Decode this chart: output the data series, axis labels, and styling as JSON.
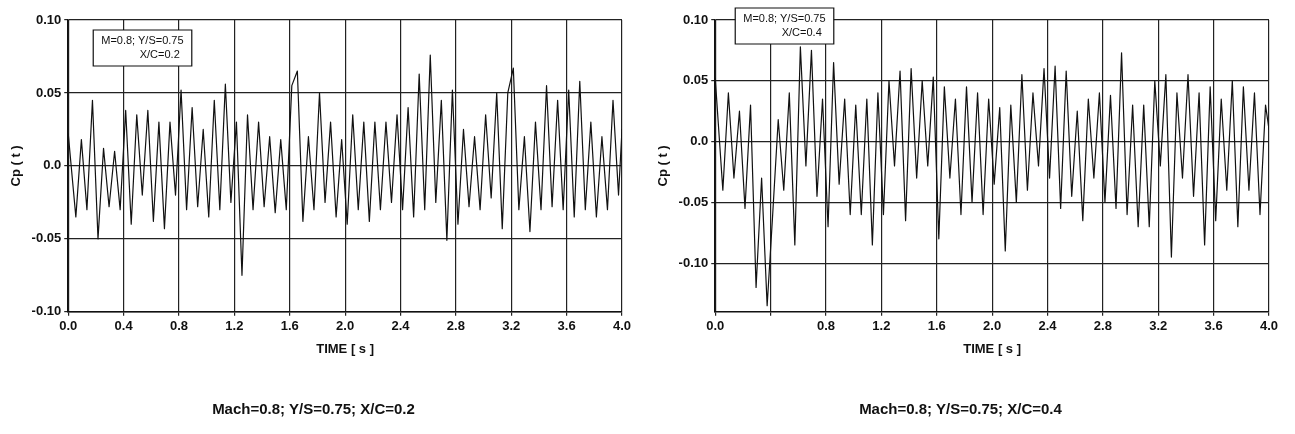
{
  "chart_data": [
    {
      "type": "line",
      "title": "Mach=0.8; Y/S=0.75; X/C=0.2",
      "xlabel": "TIME [ s ]",
      "ylabel": "Cp ( t )",
      "annotations": [
        "M=0.8; Y/S=0.75",
        "X/C=0.2"
      ],
      "series": [
        {
          "color": "#111111",
          "x": [
            0,
            0.055,
            0.095,
            0.135,
            0.175,
            0.215,
            0.255,
            0.295,
            0.335,
            0.375,
            0.415,
            0.455,
            0.495,
            0.535,
            0.575,
            0.615,
            0.655,
            0.695,
            0.735,
            0.775,
            0.815,
            0.855,
            0.895,
            0.935,
            0.975,
            1.015,
            1.055,
            1.095,
            1.135,
            1.175,
            1.215,
            1.255,
            1.295,
            1.335,
            1.375,
            1.415,
            1.455,
            1.495,
            1.535,
            1.575,
            1.615,
            1.655,
            1.695,
            1.735,
            1.775,
            1.815,
            1.855,
            1.895,
            1.935,
            1.975,
            2.015,
            2.055,
            2.095,
            2.135,
            2.175,
            2.215,
            2.255,
            2.295,
            2.335,
            2.375,
            2.415,
            2.455,
            2.495,
            2.535,
            2.575,
            2.615,
            2.655,
            2.695,
            2.735,
            2.775,
            2.815,
            2.855,
            2.895,
            2.935,
            2.975,
            3.015,
            3.055,
            3.095,
            3.135,
            3.175,
            3.215,
            3.255,
            3.295,
            3.335,
            3.375,
            3.415,
            3.455,
            3.495,
            3.535,
            3.575,
            3.615,
            3.655,
            3.695,
            3.735,
            3.775,
            3.815,
            3.855,
            3.895,
            3.935,
            3.975,
            4
          ],
          "values": [
            0.022,
            -0.035,
            0.018,
            -0.03,
            0.045,
            -0.05,
            0.012,
            -0.028,
            0.01,
            -0.03,
            0.038,
            -0.04,
            0.035,
            -0.02,
            0.038,
            -0.038,
            0.03,
            -0.043,
            0.03,
            -0.02,
            0.052,
            -0.03,
            0.04,
            -0.028,
            0.025,
            -0.035,
            0.045,
            -0.03,
            0.056,
            -0.025,
            0.03,
            -0.075,
            0.035,
            -0.03,
            0.03,
            -0.028,
            0.02,
            -0.032,
            0.018,
            -0.03,
            0.055,
            0.065,
            -0.038,
            0.02,
            -0.03,
            0.05,
            -0.025,
            0.03,
            -0.035,
            0.018,
            -0.04,
            0.035,
            -0.03,
            0.03,
            -0.038,
            0.03,
            -0.03,
            0.03,
            -0.025,
            0.035,
            -0.03,
            0.04,
            -0.035,
            0.063,
            -0.03,
            0.076,
            -0.025,
            0.045,
            -0.051,
            0.052,
            -0.04,
            0.025,
            -0.028,
            0.02,
            -0.03,
            0.035,
            -0.022,
            0.05,
            -0.043,
            0.05,
            0.067,
            -0.03,
            0.02,
            -0.045,
            0.03,
            -0.03,
            0.055,
            -0.028,
            0.045,
            -0.03,
            0.052,
            -0.035,
            0.058,
            -0.03,
            0.03,
            -0.035,
            0.02,
            -0.03,
            0.045,
            -0.02,
            0.025
          ]
        }
      ],
      "xlim": [
        0,
        4
      ],
      "xticks": [
        {
          "value": 0,
          "label": "0.0"
        },
        {
          "value": 0.4,
          "label": "0.4"
        },
        {
          "value": 0.8,
          "label": "0.8"
        },
        {
          "value": 1.2,
          "label": "1.2"
        },
        {
          "value": 1.6,
          "label": "1.6"
        },
        {
          "value": 2,
          "label": "2.0"
        },
        {
          "value": 2.4,
          "label": "2.4"
        },
        {
          "value": 2.8,
          "label": "2.8"
        },
        {
          "value": 3.2,
          "label": "3.2"
        },
        {
          "value": 3.6,
          "label": "3.6"
        },
        {
          "value": 4,
          "label": "4.0"
        }
      ],
      "ylim": [
        -0.1,
        0.1
      ],
      "yticks": [
        {
          "value": -0.1,
          "label": "-0.10"
        },
        {
          "value": -0.05,
          "label": "-0.05"
        },
        {
          "value": 0,
          "label": "0.0"
        },
        {
          "value": 0.05,
          "label": "0.05"
        },
        {
          "value": 0.1,
          "label": "0.10"
        }
      ],
      "grid": true,
      "legend": false,
      "marker": "none",
      "line_style": "solid"
    },
    {
      "type": "line",
      "title": "Mach=0.8; Y/S=0.75; X/C=0.4",
      "xlabel": "TIME [ s ]",
      "ylabel": "Cp ( t )",
      "annotations": [
        "M=0.8; Y/S=0.75",
        "X/C=0.4"
      ],
      "series": [
        {
          "color": "#111111",
          "x": [
            0,
            0.055,
            0.095,
            0.135,
            0.175,
            0.215,
            0.255,
            0.295,
            0.335,
            0.375,
            0.415,
            0.455,
            0.495,
            0.535,
            0.575,
            0.615,
            0.655,
            0.695,
            0.735,
            0.775,
            0.815,
            0.855,
            0.895,
            0.935,
            0.975,
            1.015,
            1.055,
            1.095,
            1.135,
            1.175,
            1.215,
            1.255,
            1.295,
            1.335,
            1.375,
            1.415,
            1.455,
            1.495,
            1.535,
            1.575,
            1.615,
            1.655,
            1.695,
            1.735,
            1.775,
            1.815,
            1.855,
            1.895,
            1.935,
            1.975,
            2.015,
            2.055,
            2.095,
            2.135,
            2.175,
            2.215,
            2.255,
            2.295,
            2.335,
            2.375,
            2.415,
            2.455,
            2.495,
            2.535,
            2.575,
            2.615,
            2.655,
            2.695,
            2.735,
            2.775,
            2.815,
            2.855,
            2.895,
            2.935,
            2.975,
            3.015,
            3.055,
            3.095,
            3.135,
            3.175,
            3.215,
            3.255,
            3.295,
            3.335,
            3.375,
            3.415,
            3.455,
            3.495,
            3.535,
            3.575,
            3.615,
            3.655,
            3.695,
            3.735,
            3.775,
            3.815,
            3.855,
            3.895,
            3.935,
            3.975,
            4
          ],
          "values": [
            0.052,
            -0.04,
            0.04,
            -0.03,
            0.025,
            -0.055,
            0.03,
            -0.12,
            -0.03,
            -0.135,
            -0.06,
            0.018,
            -0.04,
            0.04,
            -0.085,
            0.078,
            -0.02,
            0.075,
            -0.045,
            0.035,
            -0.07,
            0.065,
            -0.035,
            0.035,
            -0.06,
            0.03,
            -0.06,
            0.035,
            -0.085,
            0.04,
            -0.06,
            0.05,
            -0.02,
            0.058,
            -0.065,
            0.06,
            -0.03,
            0.05,
            -0.02,
            0.053,
            -0.08,
            0.045,
            -0.03,
            0.035,
            -0.06,
            0.045,
            -0.05,
            0.04,
            -0.06,
            0.035,
            -0.035,
            0.028,
            -0.09,
            0.03,
            -0.05,
            0.055,
            -0.04,
            0.04,
            -0.02,
            0.06,
            -0.03,
            0.062,
            -0.055,
            0.058,
            -0.045,
            0.025,
            -0.065,
            0.035,
            -0.03,
            0.04,
            -0.05,
            0.038,
            -0.055,
            0.073,
            -0.06,
            0.03,
            -0.07,
            0.03,
            -0.07,
            0.05,
            -0.02,
            0.055,
            -0.095,
            0.04,
            -0.03,
            0.055,
            -0.045,
            0.04,
            -0.085,
            0.045,
            -0.065,
            0.035,
            -0.04,
            0.05,
            -0.07,
            0.045,
            -0.04,
            0.04,
            -0.06,
            0.03,
            0.01
          ]
        }
      ],
      "xlim": [
        0,
        4
      ],
      "xticks": [
        {
          "value": 0,
          "label": "0.0"
        },
        {
          "value": 0.4,
          "label": null
        },
        {
          "value": 0.8,
          "label": "0.8"
        },
        {
          "value": 1.2,
          "label": "1.2"
        },
        {
          "value": 1.6,
          "label": "1.6"
        },
        {
          "value": 2,
          "label": "2.0"
        },
        {
          "value": 2.4,
          "label": "2.4"
        },
        {
          "value": 2.8,
          "label": "2.8"
        },
        {
          "value": 3.2,
          "label": "3.2"
        },
        {
          "value": 3.6,
          "label": "3.6"
        },
        {
          "value": 4,
          "label": "4.0"
        }
      ],
      "ylim": [
        -0.14,
        0.1
      ],
      "yticks": [
        {
          "value": -0.1,
          "label": "-0.10"
        },
        {
          "value": -0.05,
          "label": "-0.05"
        },
        {
          "value": 0,
          "label": "0.0"
        },
        {
          "value": 0.05,
          "label": "0.05"
        },
        {
          "value": 0.1,
          "label": "0.10"
        }
      ],
      "grid": true,
      "legend": false,
      "marker": "none",
      "line_style": "solid"
    }
  ]
}
